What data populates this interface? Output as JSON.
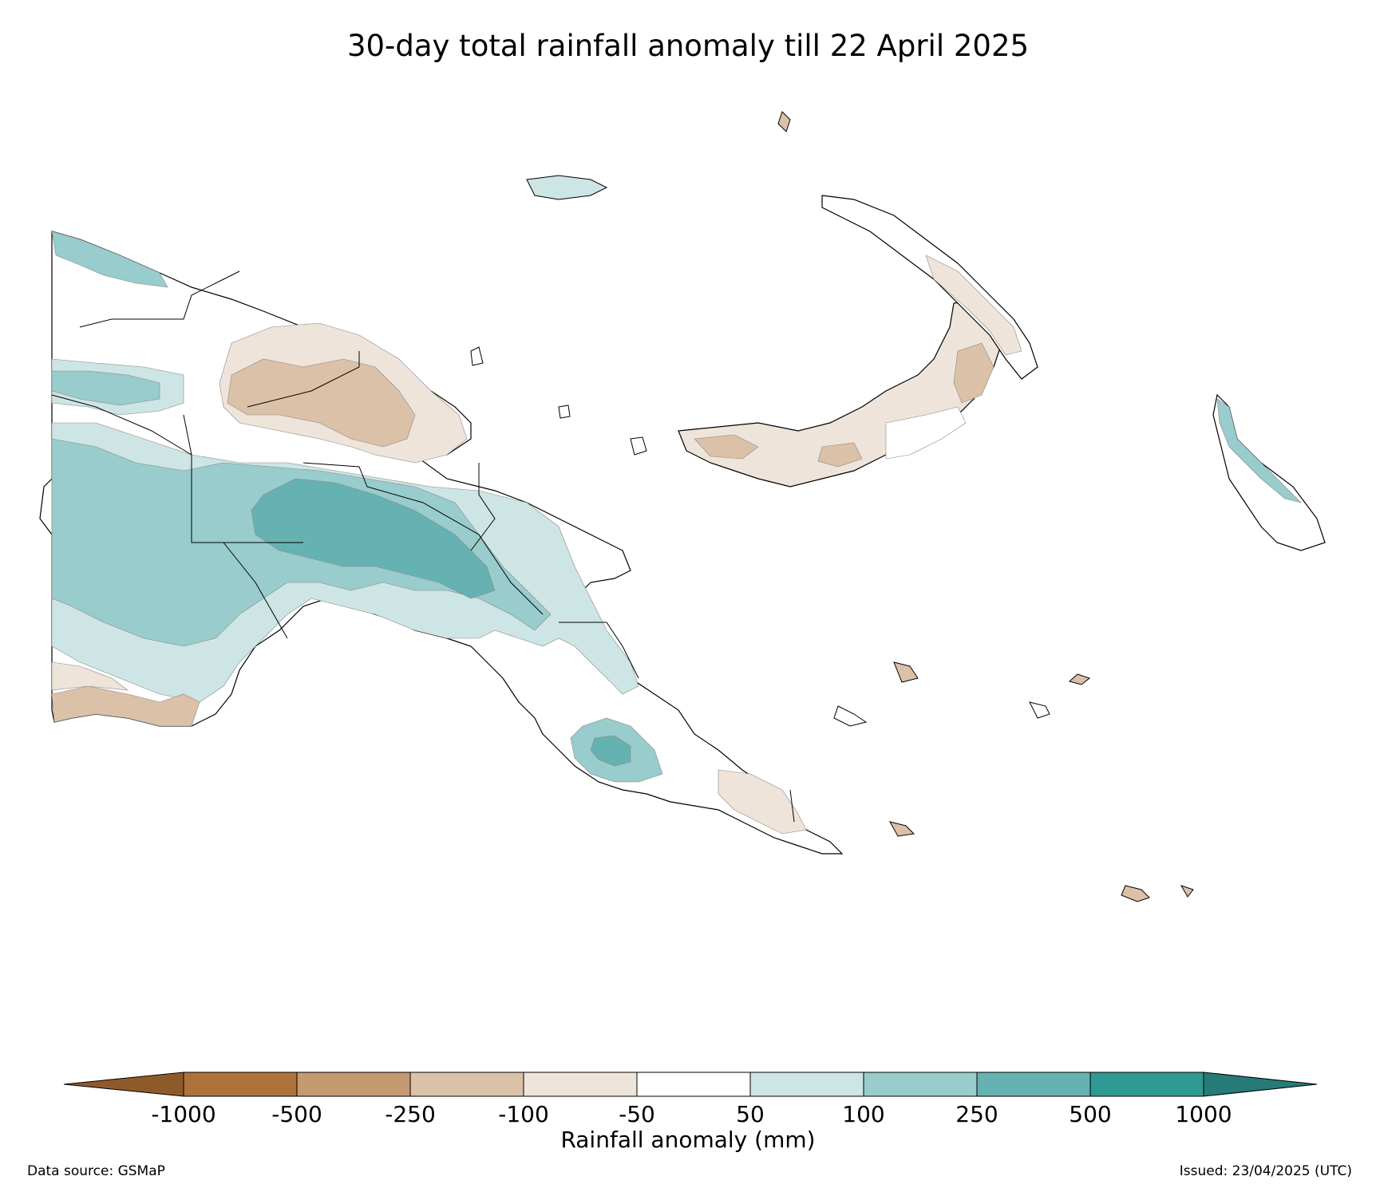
{
  "title": "30-day total rainfall anomaly till 22 April 2025",
  "colorbar": {
    "title": "Rainfall anomaly (mm)",
    "ticks": [
      "-1000",
      "-500",
      "-250",
      "-100",
      "-50",
      "50",
      "100",
      "250",
      "500",
      "1000"
    ],
    "colors": [
      "#8f5a2a",
      "#ad733b",
      "#c49a70",
      "#dbc1a8",
      "#efe4da",
      "#ffffff",
      "#cde5e4",
      "#99cccc",
      "#66b2b2",
      "#2f9994",
      "#267b78"
    ]
  },
  "regions": [
    {
      "name": "mainland-north-west",
      "category": "100"
    },
    {
      "name": "sepik-brown",
      "category": "-250"
    },
    {
      "name": "highlands-teal",
      "category": "500"
    },
    {
      "name": "western-south",
      "category": "-250"
    },
    {
      "name": "papuan-peninsula",
      "category": "250"
    },
    {
      "name": "new-britain",
      "category": "-250"
    },
    {
      "name": "new-ireland",
      "category": "-100"
    },
    {
      "name": "bougainville",
      "category": "250"
    }
  ],
  "footer": {
    "source": "Data source: GSMaP",
    "issued": "Issued: 23/04/2025 (UTC)"
  }
}
